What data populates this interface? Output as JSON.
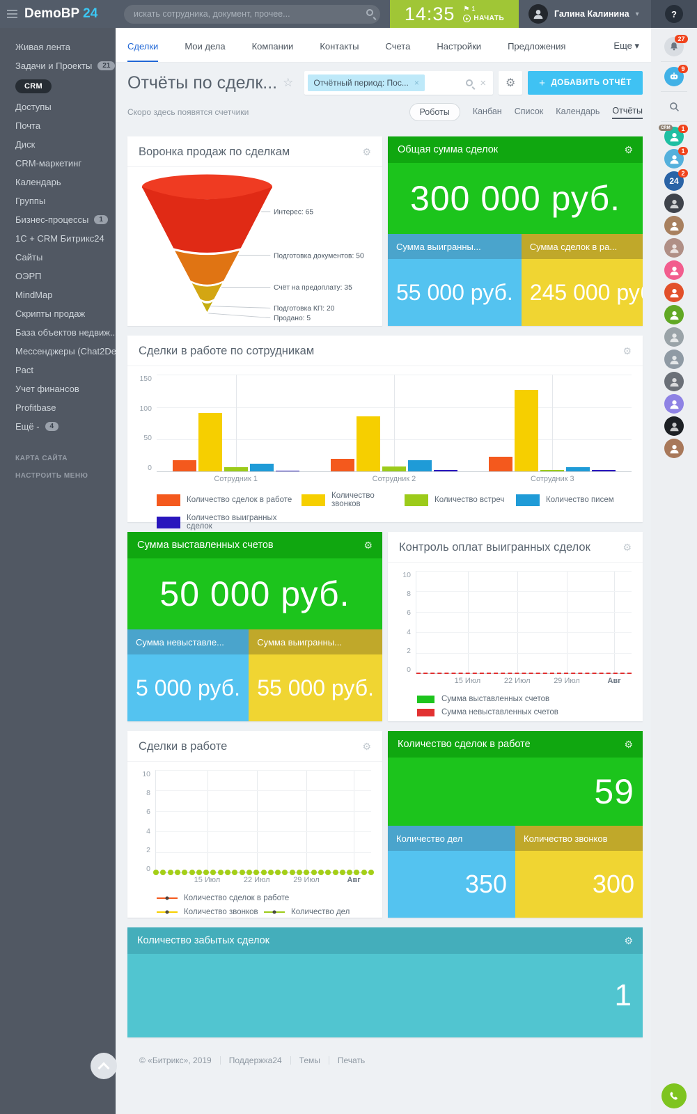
{
  "topbar": {
    "logo_text": "DemoBP",
    "logo_accent": "24",
    "search_placeholder": "искать сотрудника, документ, прочее...",
    "clock_time": "14:35",
    "clock_flag_count": "1",
    "clock_start_label": "НАЧАТЬ",
    "user_name": "Галина Калинина",
    "help_label": "?"
  },
  "sidebar": {
    "items": [
      {
        "label": "Живая лента"
      },
      {
        "label": "Задачи и Проекты",
        "badge": "21"
      },
      {
        "label": "CRM",
        "active": true
      },
      {
        "label": "Доступы"
      },
      {
        "label": "Почта"
      },
      {
        "label": "Диск"
      },
      {
        "label": "CRM-маркетинг"
      },
      {
        "label": "Календарь"
      },
      {
        "label": "Группы"
      },
      {
        "label": "Бизнес-процессы",
        "badge": "1"
      },
      {
        "label": "1С + CRM Битрикс24"
      },
      {
        "label": "Сайты"
      },
      {
        "label": "ОЭРП"
      },
      {
        "label": "MindMap"
      },
      {
        "label": "Скрипты продаж"
      },
      {
        "label": "База объектов недвиж..."
      },
      {
        "label": "Мессенджеры (Chat2De..."
      },
      {
        "label": "Pact"
      },
      {
        "label": "Учет финансов"
      },
      {
        "label": "Profitbase"
      },
      {
        "label": "Ещё -",
        "badge": "4"
      }
    ],
    "map_link": "КАРТА САЙТА",
    "menu_settings_link": "НАСТРОИТЬ МЕНЮ"
  },
  "nav": {
    "tabs": [
      {
        "label": "Сделки",
        "active": true
      },
      {
        "label": "Мои дела"
      },
      {
        "label": "Компании"
      },
      {
        "label": "Контакты"
      },
      {
        "label": "Счета"
      },
      {
        "label": "Настройки"
      },
      {
        "label": "Предложения"
      },
      {
        "label": "Еще",
        "more": true
      }
    ]
  },
  "header": {
    "title": "Отчёты по сделк...",
    "filter_chip": "Отчётный период: Пос...",
    "add_button": "ДОБАВИТЬ ОТЧЁТ"
  },
  "subnav": {
    "hint": "Скоро здесь появятся счетчики",
    "views": [
      {
        "label": "Роботы",
        "style": "pill"
      },
      {
        "label": "Канбан",
        "style": "link"
      },
      {
        "label": "Список",
        "style": "link"
      },
      {
        "label": "Календарь",
        "style": "link"
      },
      {
        "label": "Отчёты",
        "style": "active"
      }
    ]
  },
  "widgets": {
    "total_sum": {
      "title": "Общая сумма сделок",
      "value": "300 000 руб.",
      "sub": [
        {
          "title": "Сумма выигранны...",
          "value": "55 000 руб."
        },
        {
          "title": "Сумма сделок в ра...",
          "value": "245 000 руб."
        }
      ]
    },
    "invoiced_sum": {
      "title": "Сумма выставленных счетов",
      "value": "50 000 руб.",
      "sub": [
        {
          "title": "Сумма невыставле...",
          "value": "5 000 руб."
        },
        {
          "title": "Сумма выигранны...",
          "value": "55 000 руб."
        }
      ]
    },
    "deals_count": {
      "title": "Количество сделок в работе",
      "value": "59",
      "sub": [
        {
          "title": "Количество дел",
          "value": "350"
        },
        {
          "title": "Количество звонков",
          "value": "300"
        }
      ]
    },
    "forgotten": {
      "title": "Количество забытых сделок",
      "value": "1"
    }
  },
  "chart_data": [
    {
      "type": "funnel",
      "title": "Воронка продаж по сделкам",
      "stages": [
        {
          "label": "Интерес",
          "value": 65,
          "color": "#e02a15"
        },
        {
          "label": "Подготовка документов",
          "value": 50,
          "color": "#e07413"
        },
        {
          "label": "Счёт на предоплату",
          "value": 35,
          "color": "#d3a613"
        },
        {
          "label": "Подготовка КП",
          "value": 20,
          "color": "#c5ad12"
        },
        {
          "label": "Продано",
          "value": 5,
          "color": "#c5ad12"
        }
      ]
    },
    {
      "type": "bar",
      "title": "Сделки в работе по сотрудникам",
      "categories": [
        "Сотрудник 1",
        "Сотрудник 2",
        "Сотрудник 3"
      ],
      "ylim": [
        0,
        150
      ],
      "yticks": [
        0,
        50,
        100,
        150
      ],
      "grid": true,
      "legend_position": "bottom",
      "series": [
        {
          "name": "Количество сделок в работе",
          "color": "#f4591d",
          "values": [
            17,
            19,
            22
          ]
        },
        {
          "name": "Количество звонков",
          "color": "#f6cf00",
          "values": [
            90,
            85,
            125
          ]
        },
        {
          "name": "Количество встреч",
          "color": "#9ccb1a",
          "values": [
            6,
            7,
            2
          ]
        },
        {
          "name": "Количество писем",
          "color": "#1f9bd7",
          "values": [
            12,
            17,
            6
          ]
        },
        {
          "name": "Количество выигранных сделок",
          "color": "#2916bd",
          "values": [
            1,
            2,
            2
          ]
        }
      ]
    },
    {
      "type": "line",
      "title": "Контроль оплат выигранных сделок",
      "x": [
        "15 Июл",
        "22 Июл",
        "29 Июл",
        "Авг"
      ],
      "ylim": [
        0,
        10
      ],
      "yticks": [
        0,
        2,
        4,
        6,
        8,
        10
      ],
      "grid": true,
      "legend_position": "bottom",
      "series": [
        {
          "name": "Сумма выставленных счетов",
          "color": "#1dc41d",
          "values": [
            0,
            0,
            0,
            0
          ]
        },
        {
          "name": "Сумма невыставленных счетов",
          "color": "#e23131",
          "style": "dashed",
          "values": [
            0,
            0,
            0,
            0
          ]
        }
      ]
    },
    {
      "type": "line",
      "title": "Сделки в работе",
      "x": [
        "15 Июл",
        "22 Июл",
        "29 Июл",
        "Авг"
      ],
      "ylim": [
        0,
        10
      ],
      "yticks": [
        0,
        2,
        4,
        6,
        8,
        10
      ],
      "grid": true,
      "legend_position": "bottom",
      "series": [
        {
          "name": "Количество сделок в работе",
          "color": "#f4591d",
          "values": [
            0,
            0,
            0,
            0
          ]
        },
        {
          "name": "Количество звонков",
          "color": "#f6cf00",
          "values": [
            0,
            0,
            0,
            0
          ]
        },
        {
          "name": "Количество дел",
          "color": "#9ccb1a",
          "marker": "dots",
          "values": [
            0,
            0,
            0,
            0
          ]
        }
      ]
    }
  ],
  "rail": {
    "items": [
      {
        "kind": "bell",
        "badge": "27"
      },
      {
        "kind": "divider"
      },
      {
        "kind": "bot",
        "badge": "9",
        "bg": "#41b1e6"
      },
      {
        "kind": "divider"
      },
      {
        "kind": "search"
      },
      {
        "kind": "divider"
      },
      {
        "kind": "avatar",
        "bg": "#1fbfa2",
        "badge": "1",
        "tag": "CRM"
      },
      {
        "kind": "avatar",
        "bg": "#54b0dc",
        "badge": "1"
      },
      {
        "kind": "b24",
        "bg": "#2a63a6",
        "badge": "2",
        "label": "24"
      },
      {
        "kind": "photo",
        "bg": "#3f434b"
      },
      {
        "kind": "avatar",
        "bg": "#a8805f"
      },
      {
        "kind": "photo",
        "bg": "#b08f86"
      },
      {
        "kind": "avatar",
        "bg": "#f25d8e"
      },
      {
        "kind": "avatar",
        "bg": "#e2502a"
      },
      {
        "kind": "avatar",
        "bg": "#61a824"
      },
      {
        "kind": "photo",
        "bg": "#9aa3a8"
      },
      {
        "kind": "photo",
        "bg": "#8f9aa4"
      },
      {
        "kind": "photo",
        "bg": "#6b7078"
      },
      {
        "kind": "avatar",
        "bg": "#8e82e4"
      },
      {
        "kind": "photo",
        "bg": "#1d2024"
      },
      {
        "kind": "avatar",
        "bg": "#a8785a"
      }
    ]
  },
  "footer": {
    "copyright": "© «Битрикс», 2019",
    "links": [
      "Поддержка24",
      "Темы",
      "Печать"
    ]
  }
}
